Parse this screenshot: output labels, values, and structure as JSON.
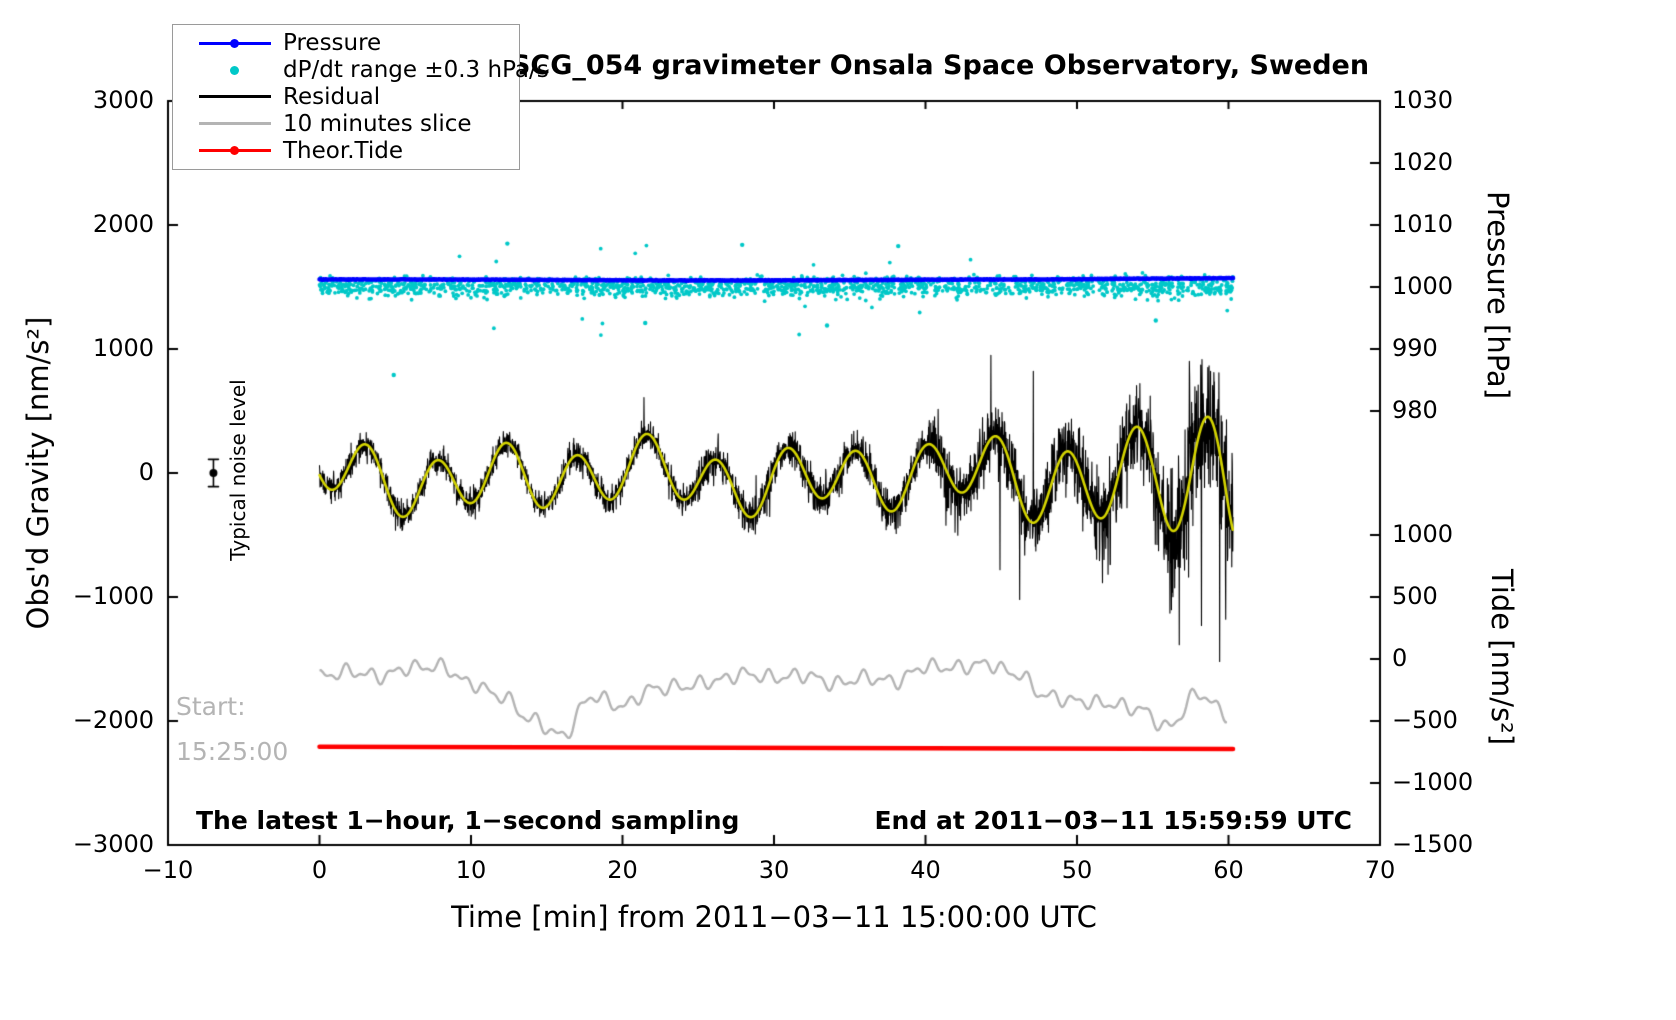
{
  "title": "SCG_054 gravimeter Onsala Space Observatory, Sweden",
  "legend": {
    "items": [
      {
        "label": "Pressure",
        "color": "#0000ff",
        "style": "line-dot"
      },
      {
        "label": "dP/dt range ±0.3 hPa/s",
        "color": "#00c8c8",
        "style": "dot"
      },
      {
        "label": "Residual",
        "color": "#000000",
        "style": "line"
      },
      {
        "label": "10 minutes slice",
        "color": "#b4b4b4",
        "style": "line"
      },
      {
        "label": "Theor.Tide",
        "color": "#ff0000",
        "style": "line-dot"
      }
    ]
  },
  "annotations": {
    "noise_label": "Typical noise level",
    "start_label": "Start:",
    "start_time": "15:25:00",
    "footer_left": "The latest 1−hour, 1−second sampling",
    "footer_right": "End at 2011−03−11 15:59:59 UTC"
  },
  "chart_data": {
    "type": "line",
    "title": "SCG_054 gravimeter Onsala Space Observatory, Sweden",
    "xlabel": "Time [min] from 2011−03−11 15:00:00 UTC",
    "grid": false,
    "legend_position": "top-left",
    "x_axis": {
      "min": -10,
      "max": 70,
      "ticks": [
        -10,
        0,
        10,
        20,
        30,
        40,
        50,
        60,
        70
      ]
    },
    "y_left": {
      "label": "Obs'd Gravity [nm/s²]",
      "min": -3000,
      "max": 3000,
      "ticks": [
        -3000,
        -2000,
        -1000,
        0,
        1000,
        2000,
        3000
      ]
    },
    "y_pressure": {
      "label": "Pressure [hPa]",
      "ticks": [
        1030,
        1020,
        1010,
        1000,
        990,
        980
      ],
      "gravity_at_1030": 3000,
      "gravity_per_hPa": 50
    },
    "y_tide": {
      "label": "Tide [nm/s²]",
      "ticks": [
        1000,
        500,
        0,
        -500,
        -1000,
        -1500
      ],
      "gravity_offset": -1500
    },
    "noise_marker": {
      "x": -7,
      "gravity": 0,
      "error": 110
    },
    "series": [
      {
        "name": "Pressure",
        "color": "#0000ff",
        "kind": "pressure-line",
        "line_width": 4.5,
        "x_range": [
          0,
          60.3
        ],
        "gravity_level": 1557,
        "approx_hPa": 1001.2,
        "wobble_amp": 4,
        "rise_start": 48,
        "rise_rate": 1.2
      },
      {
        "name": "dP/dt range ±0.3 hPa/s",
        "color": "#00c8c8",
        "kind": "scatter",
        "x_range": [
          0,
          60.3
        ],
        "center": 1502,
        "sigma": 40,
        "n_points": 1700,
        "outlier_prob": 0.015,
        "outliers": [
          [
            4.9,
            790
          ],
          [
            21.5,
            1210
          ],
          [
            33.5,
            1190
          ],
          [
            27.9,
            1840
          ],
          [
            38.2,
            1830
          ],
          [
            55.2,
            1230
          ],
          [
            12.4,
            1850
          ]
        ]
      },
      {
        "name": "Residual",
        "color": "#000000",
        "kind": "noisy-line",
        "line_width": 1.1,
        "x_range": [
          0,
          60.3
        ],
        "base": {
          "amp1": 225,
          "period1": 4.62,
          "phase1": 3.6,
          "amp2": 85,
          "period2": 10.5,
          "phase2": 1.0,
          "amp3": 45,
          "period3": 21,
          "phase3": 2.0,
          "offset": -30,
          "amp_growth": [
            [
              40,
              55,
              225,
              360
            ],
            [
              55,
              60,
              360,
              610
            ]
          ]
        },
        "noise_sigma": [
          [
            25,
            55
          ],
          [
            40,
            75
          ],
          [
            50,
            130
          ],
          [
            56,
            190
          ],
          [
            99,
            300
          ]
        ],
        "spikes": [
          [
            44.3,
            950
          ],
          [
            44.9,
            -780
          ],
          [
            46.2,
            -1020
          ],
          [
            47.1,
            820
          ],
          [
            57.4,
            900
          ],
          [
            58.2,
            -1230
          ],
          [
            58.8,
            820
          ],
          [
            59.4,
            -1520
          ],
          [
            59.8,
            -1180
          ]
        ]
      },
      {
        "name": "Residual smoothed",
        "color": "#d4d400",
        "kind": "smooth-line",
        "line_width": 2.6,
        "x_range": [
          0,
          60.3
        ]
      },
      {
        "name": "10 minutes slice",
        "color": "#b4b4b4",
        "kind": "sampled-line",
        "line_width": 2.4,
        "t_step": 2,
        "values": [
          -1640,
          -1600,
          -1640,
          -1570,
          -1560,
          -1700,
          -1800,
          -1990,
          -2120,
          -1800,
          -1880,
          -1740,
          -1720,
          -1680,
          -1620,
          -1650,
          -1630,
          -1700,
          -1650,
          -1680,
          -1560,
          -1570,
          -1540,
          -1620,
          -1800,
          -1840,
          -1860,
          -1900,
          -2050,
          -1780,
          -1950
        ],
        "wiggle": [
          {
            "amp": 42,
            "period": 1.55,
            "phase": 0.7
          },
          {
            "amp": 26,
            "period": 0.9,
            "phase": 2.0
          }
        ]
      },
      {
        "name": "Theor.Tide",
        "color": "#ff0000",
        "kind": "straight-line",
        "line_width": 4.5,
        "x_range": [
          0,
          60.3
        ],
        "g0": -2208,
        "g1": -2226,
        "tide_value_approx": -715
      }
    ]
  }
}
